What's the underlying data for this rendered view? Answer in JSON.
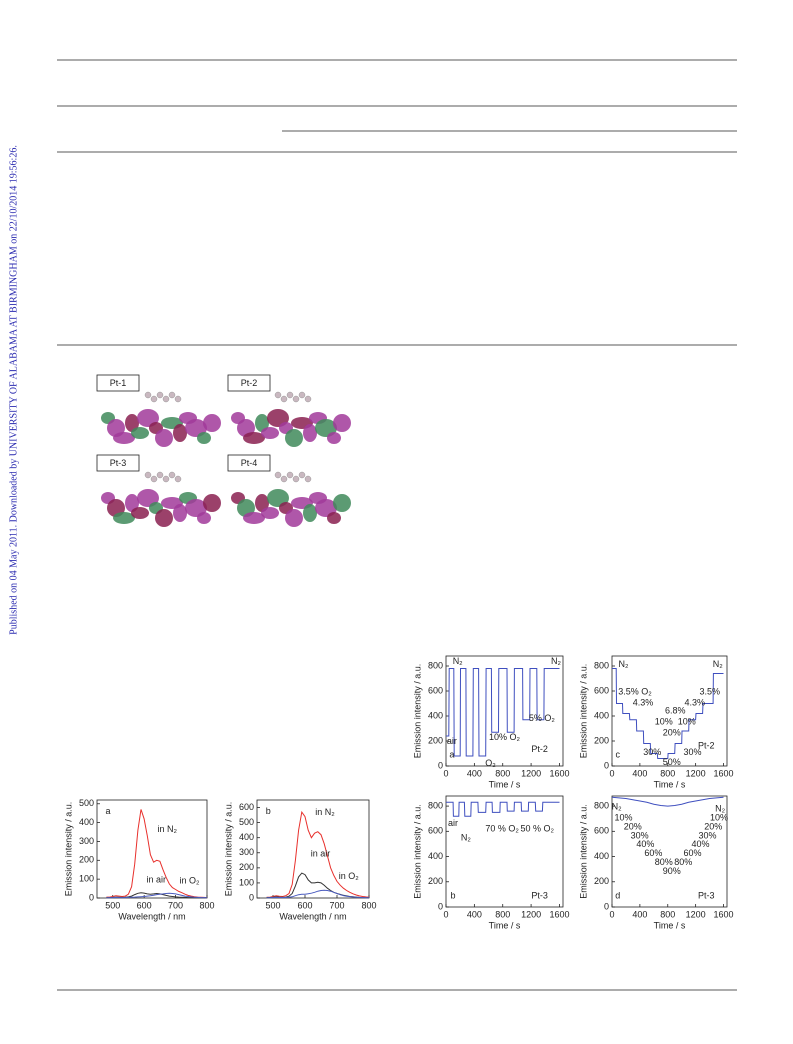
{
  "watermark": "Published on 04 May 2011. Downloaded by UNIVERSITY OF ALABAMA AT BIRMINGHAM on 22/10/2014 19:56:26.",
  "orbital_labels": [
    "Pt-1",
    "Pt-2",
    "Pt-3",
    "Pt-4"
  ],
  "chart_data": [
    {
      "type": "line",
      "y_label": "Emission intensity / a.u.",
      "x_label": "Wavelength / nm",
      "annotations": [
        "a"
      ],
      "x": [
        480,
        490,
        500,
        510,
        520,
        530,
        540,
        550,
        560,
        570,
        580,
        590,
        600,
        610,
        620,
        630,
        640,
        650,
        660,
        670,
        680,
        690,
        700,
        710,
        720,
        730,
        740,
        750,
        760,
        770,
        780,
        790,
        800
      ],
      "xlim": [
        450,
        800
      ],
      "xticks": [
        500,
        600,
        700,
        800
      ],
      "ylim": [
        0,
        520
      ],
      "yticks": [
        0,
        100,
        200,
        300,
        400,
        500
      ],
      "series": [
        {
          "name": "in N₂",
          "color": "#e8302c",
          "values": [
            5,
            5,
            8,
            12,
            10,
            8,
            10,
            20,
            60,
            180,
            360,
            470,
            420,
            330,
            230,
            190,
            200,
            195,
            150,
            110,
            75,
            55,
            45,
            35,
            28,
            20,
            14,
            10,
            7,
            5,
            4,
            3,
            2
          ]
        },
        {
          "name": "in air",
          "color": "#333333",
          "values": [
            2,
            2,
            3,
            5,
            4,
            3,
            4,
            6,
            10,
            18,
            25,
            28,
            26,
            22,
            20,
            22,
            24,
            22,
            18,
            14,
            10,
            8,
            6,
            5,
            4,
            3,
            2,
            2,
            1,
            1,
            1,
            1,
            1
          ]
        },
        {
          "name": "in O₂",
          "color": "#4a5bbf",
          "values": [
            1,
            1,
            2,
            3,
            2,
            2,
            2,
            3,
            4,
            5,
            6,
            7,
            8,
            10,
            12,
            15,
            18,
            20,
            22,
            24,
            25,
            24,
            22,
            18,
            14,
            10,
            8,
            6,
            4,
            3,
            2,
            2,
            1
          ]
        }
      ]
    },
    {
      "type": "line",
      "y_label": "Emission intensity / a.u.",
      "x_label": "Wavelength / nm",
      "annotations": [
        "b"
      ],
      "x": [
        480,
        490,
        500,
        510,
        520,
        530,
        540,
        550,
        560,
        570,
        580,
        590,
        600,
        610,
        620,
        630,
        640,
        650,
        660,
        670,
        680,
        690,
        700,
        710,
        720,
        730,
        740,
        750,
        760,
        770,
        780,
        790,
        800
      ],
      "xlim": [
        450,
        800
      ],
      "xticks": [
        500,
        600,
        700,
        800
      ],
      "ylim": [
        0,
        650
      ],
      "yticks": [
        0,
        100,
        200,
        300,
        400,
        500,
        600
      ],
      "series": [
        {
          "name": "in N₂",
          "color": "#e8302c",
          "values": [
            5,
            5,
            10,
            15,
            12,
            10,
            15,
            30,
            90,
            250,
            450,
            570,
            540,
            450,
            400,
            430,
            440,
            420,
            360,
            280,
            200,
            150,
            110,
            85,
            65,
            50,
            38,
            28,
            20,
            14,
            10,
            7,
            5
          ]
        },
        {
          "name": "in air",
          "color": "#333333",
          "values": [
            3,
            3,
            5,
            8,
            6,
            5,
            6,
            12,
            30,
            80,
            140,
            165,
            155,
            120,
            100,
            100,
            105,
            100,
            85,
            65,
            50,
            38,
            30,
            24,
            18,
            14,
            10,
            8,
            6,
            4,
            3,
            2,
            2
          ]
        },
        {
          "name": "in O₂",
          "color": "#4a5bbf",
          "values": [
            2,
            2,
            3,
            4,
            3,
            3,
            3,
            5,
            8,
            15,
            22,
            25,
            25,
            28,
            32,
            38,
            45,
            50,
            52,
            50,
            45,
            38,
            30,
            22,
            16,
            12,
            9,
            7,
            5,
            4,
            3,
            2,
            2
          ]
        }
      ]
    },
    {
      "type": "line",
      "y_label": "Emission intensity / a.u.",
      "x_label": "Time / s",
      "annotations": [
        "a",
        "Pt-2",
        "N₂",
        "N₂",
        "air",
        "O₂",
        "10% O₂",
        "5% O₂"
      ],
      "x": [
        0,
        40,
        45,
        110,
        115,
        200,
        205,
        280,
        285,
        380,
        385,
        460,
        465,
        560,
        565,
        640,
        645,
        740,
        745,
        860,
        865,
        960,
        965,
        1080,
        1085,
        1180,
        1185,
        1280,
        1285,
        1380,
        1385,
        1600
      ],
      "xlim": [
        0,
        1650
      ],
      "xticks": [
        0,
        400,
        800,
        1200,
        1600
      ],
      "ylim": [
        0,
        880
      ],
      "yticks": [
        0,
        200,
        400,
        600,
        800
      ],
      "series": [
        {
          "color": "#3f4fbf",
          "values": [
            240,
            240,
            780,
            780,
            80,
            80,
            780,
            780,
            80,
            80,
            780,
            780,
            80,
            80,
            780,
            780,
            270,
            270,
            780,
            780,
            270,
            270,
            780,
            780,
            370,
            370,
            780,
            780,
            370,
            370,
            780,
            780
          ]
        }
      ]
    },
    {
      "type": "line",
      "y_label": "Emission intensity / a.u.",
      "x_label": "Time / s",
      "annotations": [
        "c",
        "Pt-2",
        "N₂",
        "N₂",
        "3.5% O₂",
        "4.3%",
        "6.8%",
        "10%",
        "20%",
        "30%",
        "50%",
        "30%",
        "10%",
        "4.3%",
        "3.5%"
      ],
      "x": [
        0,
        60,
        65,
        150,
        155,
        250,
        255,
        350,
        355,
        450,
        455,
        550,
        555,
        650,
        655,
        800,
        805,
        900,
        905,
        1000,
        1005,
        1100,
        1105,
        1200,
        1205,
        1300,
        1305,
        1450,
        1455,
        1600
      ],
      "xlim": [
        0,
        1650
      ],
      "xticks": [
        0,
        400,
        800,
        1200,
        1600
      ],
      "ylim": [
        0,
        880
      ],
      "yticks": [
        0,
        200,
        400,
        600,
        800
      ],
      "series": [
        {
          "color": "#3f4fbf",
          "values": [
            780,
            780,
            500,
            500,
            420,
            420,
            370,
            370,
            280,
            280,
            180,
            180,
            100,
            100,
            60,
            60,
            100,
            100,
            180,
            180,
            280,
            280,
            370,
            370,
            420,
            420,
            500,
            500,
            740,
            740
          ]
        }
      ]
    },
    {
      "type": "line",
      "y_label": "Emission intensity / a.u.",
      "x_label": "Time / s",
      "annotations": [
        "b",
        "Pt-3",
        "air",
        "N₂",
        "70 % O₂",
        "50 % O₂"
      ],
      "x": [
        0,
        100,
        105,
        180,
        185,
        260,
        265,
        350,
        355,
        450,
        455,
        560,
        565,
        650,
        655,
        760,
        765,
        860,
        865,
        960,
        965,
        1060,
        1065,
        1160,
        1165,
        1260,
        1265,
        1360,
        1365,
        1460,
        1465,
        1600
      ],
      "xlim": [
        0,
        1650
      ],
      "xticks": [
        0,
        400,
        800,
        1200,
        1600
      ],
      "ylim": [
        0,
        880
      ],
      "yticks": [
        0,
        200,
        400,
        600,
        800
      ],
      "series": [
        {
          "color": "#3f4fbf",
          "values": [
            830,
            830,
            720,
            720,
            830,
            830,
            720,
            720,
            830,
            830,
            750,
            750,
            830,
            830,
            750,
            750,
            830,
            830,
            760,
            760,
            830,
            830,
            760,
            760,
            830,
            830,
            760,
            760,
            830,
            830,
            830,
            830
          ]
        }
      ]
    },
    {
      "type": "line",
      "y_label": "Emission intensity / a.u.",
      "x_label": "Time / s",
      "annotations": [
        "d",
        "Pt-3",
        "N₂",
        "N₂",
        "10%",
        "20%",
        "30%",
        "40%",
        "60%",
        "80%",
        "90%",
        "80%",
        "60%",
        "40%",
        "30%",
        "20%",
        "10%"
      ],
      "x": [
        0,
        100,
        200,
        300,
        400,
        500,
        600,
        700,
        800,
        900,
        1000,
        1100,
        1200,
        1300,
        1400,
        1500,
        1600
      ],
      "xlim": [
        0,
        1650
      ],
      "xticks": [
        0,
        400,
        800,
        1200,
        1600
      ],
      "ylim": [
        0,
        880
      ],
      "yticks": [
        0,
        200,
        400,
        600,
        800
      ],
      "series": [
        {
          "color": "#3f4fbf",
          "values": [
            870,
            865,
            860,
            850,
            840,
            830,
            815,
            805,
            800,
            805,
            815,
            830,
            840,
            850,
            860,
            865,
            870
          ]
        }
      ]
    }
  ]
}
